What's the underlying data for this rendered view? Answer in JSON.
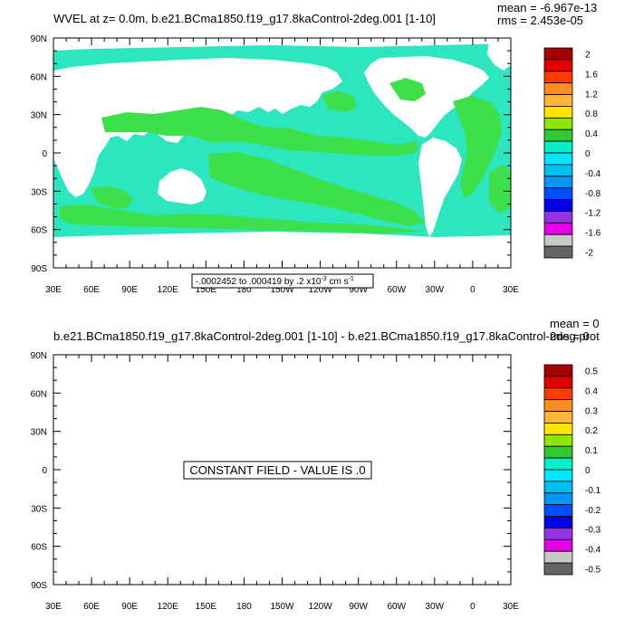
{
  "colors": {
    "ocean_lo": "#2de6c0",
    "ocean_hi": "#3de04a",
    "land": "#ffffff",
    "frame": "#000000"
  },
  "top_panel": {
    "title": "WVEL at z=   0.0m, b.e21.BCma1850.f19_g17.8kaControl-2deg.001 [1-10]",
    "mean": "mean = -6.967e-13",
    "rms": "rms = 2.453e-05",
    "info_box": "-.0002452 to .000419 by .2 x10",
    "info_exp": "-3",
    "info_unit": " cm s",
    "info_unit_exp": "-1",
    "lat_ticks": [
      "90N",
      "60N",
      "30N",
      "0",
      "30S",
      "60S",
      "90S"
    ],
    "lon_ticks": [
      "30E",
      "60E",
      "90E",
      "120E",
      "150E",
      "180",
      "150W",
      "120W",
      "90W",
      "60W",
      "30W",
      "0",
      "30E"
    ],
    "colorbar": {
      "labels": [
        "2",
        "1.6",
        "1.2",
        "0.8",
        "0.4",
        "0",
        "-0.4",
        "-0.8",
        "-1.2",
        "-1.6",
        "-2"
      ],
      "colors": [
        "#a50000",
        "#e10000",
        "#ff3c00",
        "#ff8c1e",
        "#ffb43c",
        "#ffe600",
        "#8ce600",
        "#32c832",
        "#00f0c8",
        "#00e6ff",
        "#00bef0",
        "#0096ff",
        "#0050ff",
        "#0000e6",
        "#9632e6",
        "#e600e6",
        "#c8c8c8",
        "#646464"
      ]
    }
  },
  "bottom_panel": {
    "title": "b.e21.BCma1850.f19_g17.8kaControl-2deg.001 [1-10] - b.e21.BCma1850.f19_g17.8kaControl-2deg.prot",
    "mean": "mean = 0",
    "rms": "rms = 0",
    "constant_label": "CONSTANT FIELD - VALUE IS .0",
    "lat_ticks": [
      "90N",
      "60N",
      "30N",
      "0",
      "30S",
      "60S",
      "90S"
    ],
    "lon_ticks": [
      "30E",
      "60E",
      "90E",
      "120E",
      "150E",
      "180",
      "150W",
      "120W",
      "90W",
      "60W",
      "30W",
      "0",
      "30E"
    ],
    "colorbar": {
      "labels": [
        "0.5",
        "0.4",
        "0.3",
        "0.2",
        "0.1",
        "0",
        "-0.1",
        "-0.2",
        "-0.3",
        "-0.4",
        "-0.5"
      ],
      "colors": [
        "#a50000",
        "#e10000",
        "#ff3c00",
        "#ff8c1e",
        "#ffb43c",
        "#ffe600",
        "#8ce600",
        "#32c832",
        "#00f0c8",
        "#00e6ff",
        "#00bef0",
        "#0096ff",
        "#0050ff",
        "#0000e6",
        "#9632e6",
        "#e600e6",
        "#c8c8c8",
        "#646464"
      ]
    }
  }
}
